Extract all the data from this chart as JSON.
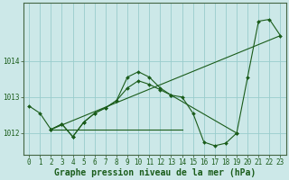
{
  "background_color": "#cce8e8",
  "grid_color": "#99cccc",
  "line_color": "#1a5c1a",
  "marker_color": "#1a5c1a",
  "xlabel": "Graphe pression niveau de la mer (hPa)",
  "xlabel_fontsize": 7,
  "tick_fontsize": 5.5,
  "yticks": [
    1012,
    1013,
    1014
  ],
  "ylim": [
    1011.4,
    1015.6
  ],
  "xlim": [
    -0.5,
    23.5
  ],
  "xticks": [
    0,
    1,
    2,
    3,
    4,
    5,
    6,
    7,
    8,
    9,
    10,
    11,
    12,
    13,
    14,
    15,
    16,
    17,
    18,
    19,
    20,
    21,
    22,
    23
  ],
  "series": [
    {
      "x": [
        0,
        1,
        2,
        3,
        4,
        5,
        6,
        7,
        8,
        9,
        10,
        11,
        12,
        13,
        14,
        15,
        16,
        17,
        18,
        19,
        20,
        21,
        22,
        23
      ],
      "y": [
        1012.75,
        1012.55,
        1012.1,
        1012.25,
        1011.9,
        1012.3,
        1012.55,
        1012.7,
        1012.9,
        1013.55,
        1013.7,
        1013.55,
        1013.25,
        1013.05,
        1013.0,
        1012.55,
        1011.75,
        1011.65,
        1011.72,
        1012.0,
        1013.55,
        1015.1,
        1015.15,
        1014.7
      ],
      "has_markers": true
    },
    {
      "x": [
        2,
        3,
        4,
        5,
        6,
        7,
        8,
        9,
        10,
        11,
        12,
        13,
        19
      ],
      "y": [
        1012.1,
        1012.25,
        1011.9,
        1012.3,
        1012.55,
        1012.7,
        1012.9,
        1013.25,
        1013.45,
        1013.35,
        1013.2,
        1013.05,
        1012.0
      ],
      "has_markers": true
    },
    {
      "x": [
        2,
        14
      ],
      "y": [
        1012.1,
        1012.1
      ],
      "has_markers": false
    },
    {
      "x": [
        2,
        23
      ],
      "y": [
        1012.1,
        1014.7
      ],
      "has_markers": false
    }
  ]
}
